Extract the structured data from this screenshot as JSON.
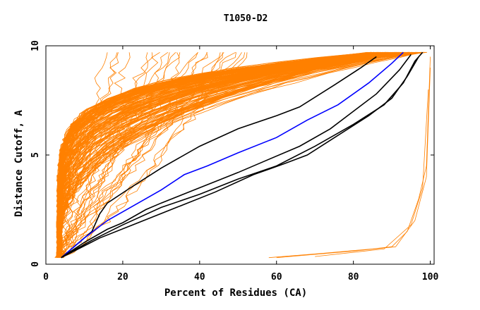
{
  "chart_data": {
    "type": "line",
    "title": "T1050-D2",
    "xlabel": "Percent of Residues (CA)",
    "ylabel": "Distance Cutoff, A",
    "xlim": [
      0,
      101
    ],
    "ylim": [
      0,
      10
    ],
    "x_ticks": [
      "0",
      "20",
      "40",
      "60",
      "80",
      "100"
    ],
    "y_ticks": [
      "0",
      "5",
      "10"
    ],
    "colors": {
      "bulk": "#ff8000",
      "highlight_black": "#000000",
      "highlight_blue": "#0000ff"
    },
    "series": [
      {
        "color": "#000000",
        "points": [
          [
            4,
            0.3
          ],
          [
            8,
            0.9
          ],
          [
            12,
            1.5
          ],
          [
            14,
            2.3
          ],
          [
            16,
            2.8
          ],
          [
            22,
            3.5
          ],
          [
            30,
            4.4
          ],
          [
            40,
            5.4
          ],
          [
            50,
            6.2
          ],
          [
            60,
            6.8
          ],
          [
            66,
            7.2
          ],
          [
            75,
            8.2
          ],
          [
            82,
            9.0
          ],
          [
            86,
            9.5
          ]
        ]
      },
      {
        "color": "#0000ff",
        "points": [
          [
            4,
            0.3
          ],
          [
            10,
            1.2
          ],
          [
            16,
            2.0
          ],
          [
            22,
            2.6
          ],
          [
            30,
            3.4
          ],
          [
            36,
            4.1
          ],
          [
            42,
            4.5
          ],
          [
            50,
            5.1
          ],
          [
            60,
            5.8
          ],
          [
            68,
            6.6
          ],
          [
            76,
            7.3
          ],
          [
            84,
            8.3
          ],
          [
            90,
            9.2
          ],
          [
            93,
            9.7
          ]
        ]
      },
      {
        "color": "#000000",
        "points": [
          [
            4,
            0.3
          ],
          [
            10,
            1.0
          ],
          [
            16,
            1.6
          ],
          [
            20,
            1.9
          ],
          [
            26,
            2.5
          ],
          [
            30,
            2.8
          ],
          [
            40,
            3.5
          ],
          [
            50,
            4.2
          ],
          [
            58,
            4.8
          ],
          [
            66,
            5.4
          ],
          [
            74,
            6.2
          ],
          [
            80,
            7.0
          ],
          [
            86,
            7.8
          ],
          [
            92,
            8.9
          ],
          [
            95,
            9.6
          ]
        ]
      },
      {
        "color": "#000000",
        "points": [
          [
            4,
            0.3
          ],
          [
            12,
            1.1
          ],
          [
            20,
            1.8
          ],
          [
            30,
            2.6
          ],
          [
            40,
            3.2
          ],
          [
            50,
            3.9
          ],
          [
            60,
            4.5
          ],
          [
            70,
            5.4
          ],
          [
            80,
            6.4
          ],
          [
            88,
            7.3
          ],
          [
            93,
            8.3
          ],
          [
            96,
            9.3
          ],
          [
            98,
            9.7
          ]
        ]
      },
      {
        "color": "#000000",
        "points": [
          [
            4,
            0.3
          ],
          [
            14,
            1.2
          ],
          [
            24,
            1.9
          ],
          [
            34,
            2.6
          ],
          [
            44,
            3.3
          ],
          [
            54,
            4.1
          ],
          [
            62,
            4.6
          ],
          [
            68,
            5.0
          ],
          [
            76,
            5.9
          ],
          [
            84,
            6.8
          ],
          [
            90,
            7.6
          ],
          [
            94,
            8.6
          ],
          [
            97,
            9.5
          ]
        ]
      }
    ]
  }
}
